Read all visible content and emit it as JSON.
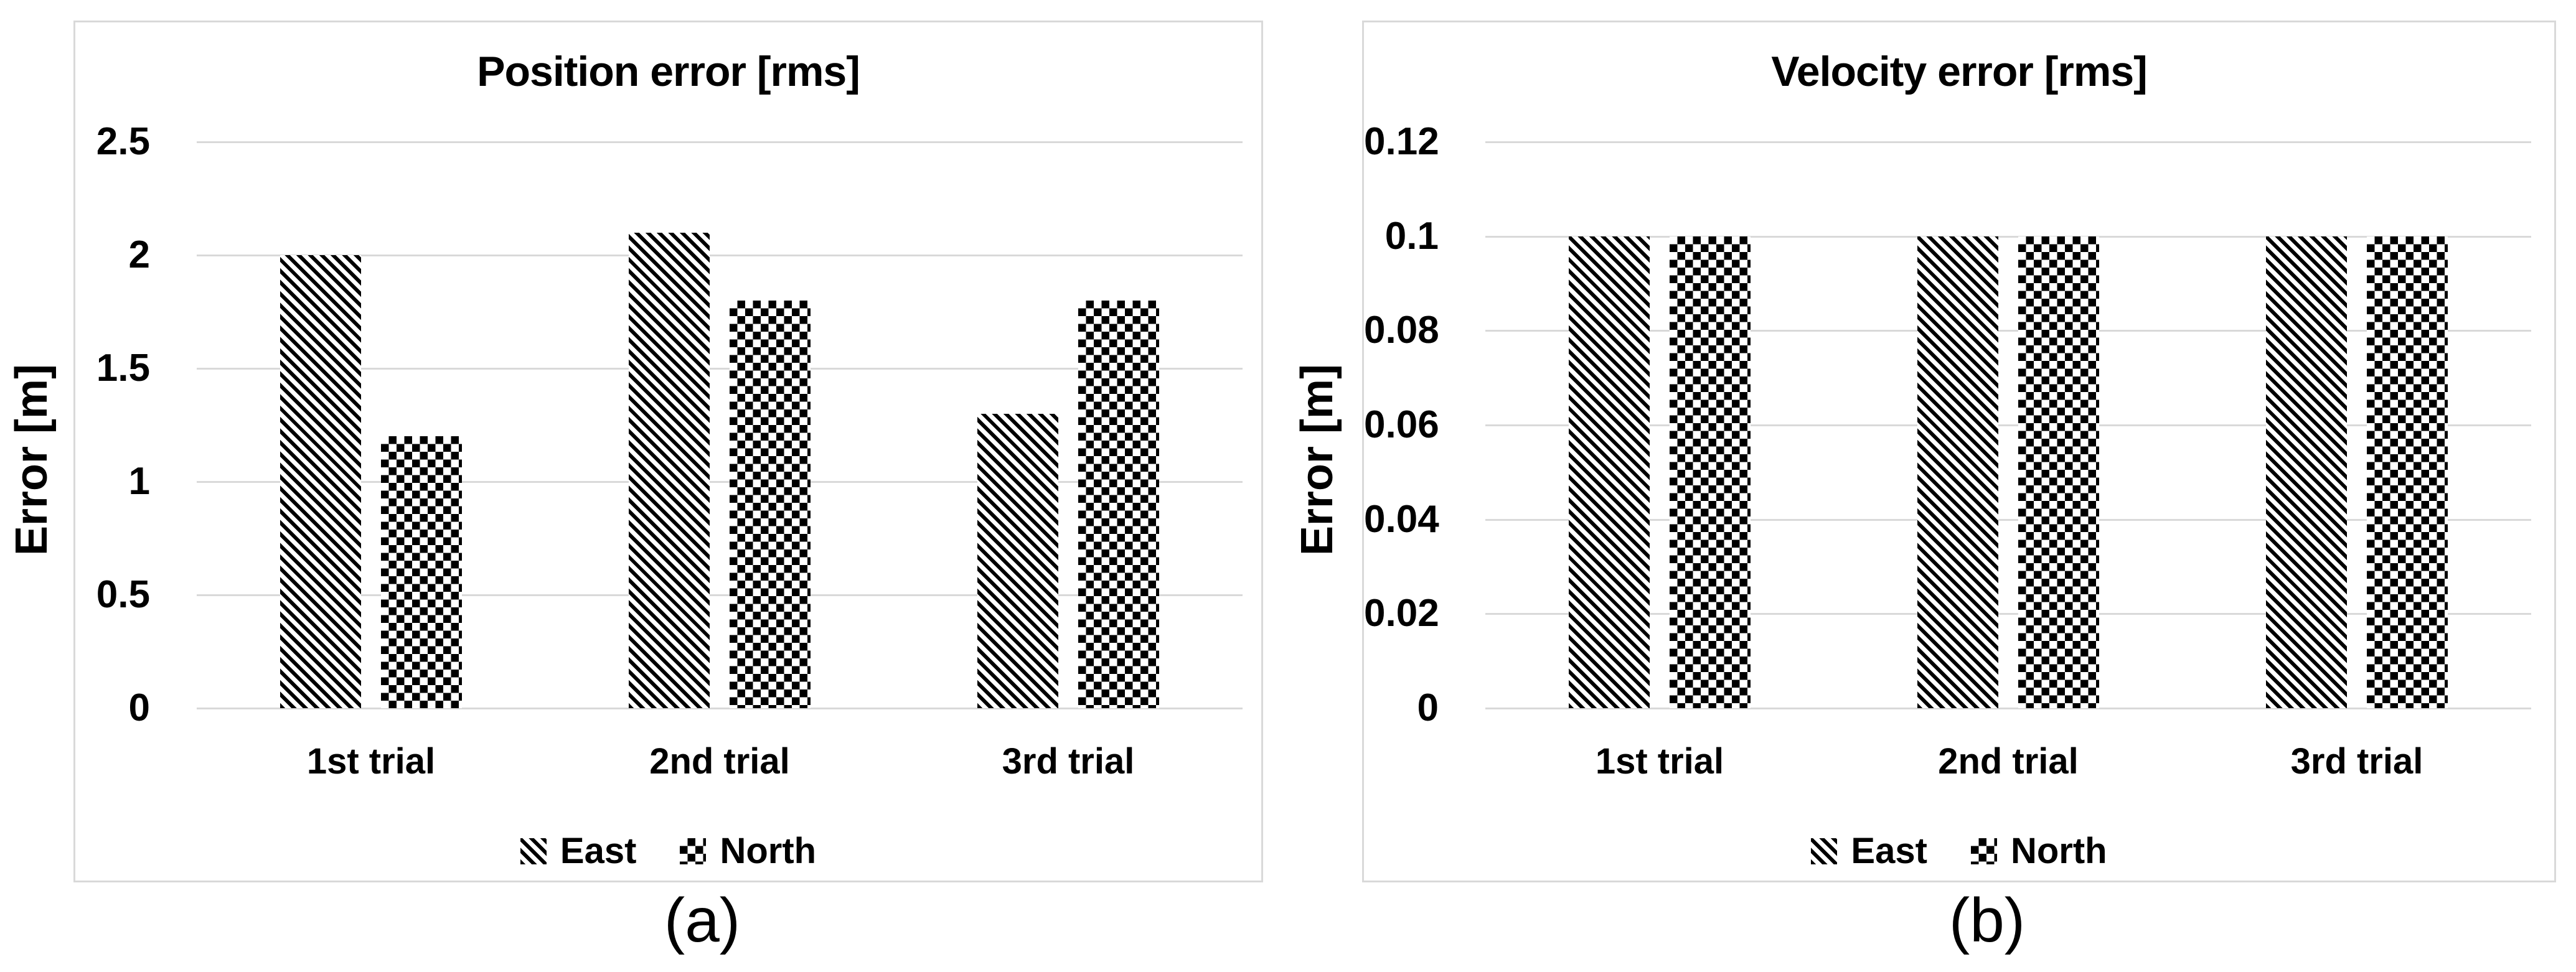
{
  "figure": {
    "background": "#ffffff",
    "panel_border_color": "#d9d9d9",
    "gridline_color": "#d9d9d9",
    "text_color": "#000000",
    "bar_color": "#000000"
  },
  "chart_data": [
    {
      "type": "bar",
      "title": "Position error [rms]",
      "ylabel": "Error [m]",
      "xlabel": "",
      "caption": "(a)",
      "categories": [
        "1st trial",
        "2nd trial",
        "3rd trial"
      ],
      "series": [
        {
          "name": "East",
          "pattern": "diagonal-hatch",
          "values": [
            2.0,
            2.1,
            1.3
          ]
        },
        {
          "name": "North",
          "pattern": "checkerboard",
          "values": [
            1.2,
            1.8,
            1.8
          ]
        }
      ],
      "y_ticks": [
        "0",
        "0.5",
        "1",
        "1.5",
        "2",
        "2.5"
      ],
      "ylim": [
        0,
        2.5
      ],
      "grid": true,
      "legend_position": "bottom"
    },
    {
      "type": "bar",
      "title": "Velocity error [rms]",
      "ylabel": "Error [m]",
      "xlabel": "",
      "caption": "(b)",
      "categories": [
        "1st trial",
        "2nd trial",
        "3rd trial"
      ],
      "series": [
        {
          "name": "East",
          "pattern": "diagonal-hatch",
          "values": [
            0.1,
            0.1,
            0.1
          ]
        },
        {
          "name": "North",
          "pattern": "checkerboard",
          "values": [
            0.1,
            0.1,
            0.1
          ]
        }
      ],
      "y_ticks": [
        "0",
        "0.02",
        "0.04",
        "0.06",
        "0.08",
        "0.1",
        "0.12"
      ],
      "ylim": [
        0,
        0.12
      ],
      "grid": true,
      "legend_position": "bottom"
    }
  ]
}
